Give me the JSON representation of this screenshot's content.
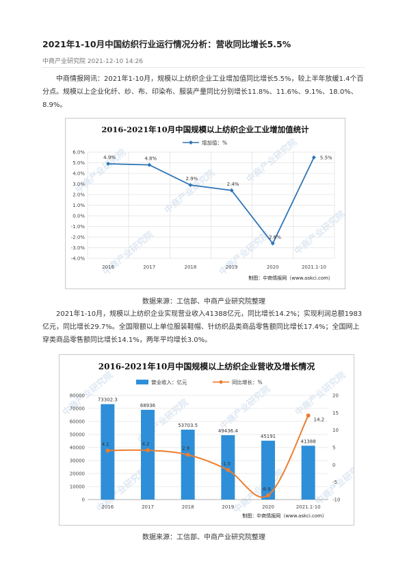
{
  "article": {
    "title": "2021年1-10月中国纺织行业运行情况分析：营收同比增长5.5%",
    "meta": "中商产业研究院  2021-12-10 14:26",
    "paragraph1": "中商情报网讯：2021年1-10月，规模以上纺织企业工业增加值同比增长5.5%，较上半年放缓1.4个百分点。规模以上企业化纤、纱、布、印染布、服装产量同比分别增长11.8%、11.6%、9.1%、18.0%、8.9%。",
    "source1": "数据来源：工信部、中商产业研究院整理",
    "paragraph2": "2021年1-10月，规模以上纺织企业实现营业收入41388亿元，同比增长14.2%；实现利润总额1983亿元，同比增长29.7%。全国限额以上单位服装鞋帽、针纺织品类商品零售额同比增长17.4%；全国网上穿类商品零售额同比增长14.1%，两年平均增长3.0%。",
    "source2": "数据来源：工信部、中商产业研究院整理"
  },
  "watermark": "中商产业研究院",
  "chart_data": [
    {
      "type": "line",
      "title": "2016-2021年10月中国规模以上纺织企业工业增加值统计",
      "categories": [
        "2016",
        "2017",
        "2018",
        "2019",
        "2020",
        "2021.1-10"
      ],
      "series": [
        {
          "name": "增加值：%",
          "values": [
            4.9,
            4.8,
            2.9,
            2.4,
            -2.6,
            5.5
          ],
          "color": "#2e75b6"
        }
      ],
      "data_labels": [
        "4.9%",
        "4.8%",
        "2.9%",
        "2.4%",
        "-2.6%",
        "5.5%"
      ],
      "ylim": [
        -4,
        6
      ],
      "ytick_labels": [
        "6.0%",
        "5.0%",
        "4.0%",
        "3.0%",
        "2.0%",
        "1.0%",
        "0.0%",
        "-1.0%",
        "-2.0%",
        "-3.0%",
        "-4.0%"
      ],
      "grid": true,
      "legend_position": "top",
      "credit": "制图：中商情报网（www.askci.com）"
    },
    {
      "type": "bar",
      "title": "2016-2021年10月中国规模以上纺织企业营收及增长情况",
      "categories": [
        "2016",
        "2017",
        "2018",
        "2019",
        "2020",
        "2021.1-10"
      ],
      "series": [
        {
          "name": "营业收入：亿元",
          "type": "bar",
          "axis": "left",
          "values": [
            73302.3,
            68936,
            53703.5,
            49436.4,
            45191,
            41388
          ],
          "color": "#2e8fd8"
        },
        {
          "name": "同比增长：%",
          "type": "line",
          "axis": "right",
          "values": [
            4.1,
            4.2,
            2.9,
            -1.5,
            -8.8,
            14.2
          ],
          "color": "#ed7d31"
        }
      ],
      "bar_labels": [
        "73302.3",
        "68936",
        "53703.5",
        "49436.4",
        "45191",
        "41388"
      ],
      "line_labels": [
        "4.1",
        "4.2",
        "2.9",
        "-1.5",
        "-8.8",
        "14.2"
      ],
      "ylim_left": [
        0,
        80000
      ],
      "ylim_right": [
        -10,
        20
      ],
      "yticks_left": [
        "80000",
        "70000",
        "60000",
        "50000",
        "40000",
        "30000",
        "20000",
        "10000",
        "0"
      ],
      "yticks_right": [
        "20",
        "15",
        "10",
        "5",
        "0",
        "-5",
        "-10"
      ],
      "grid": true,
      "legend_position": "top",
      "credit": "制图：中商情报网（www.askci.com）"
    }
  ]
}
